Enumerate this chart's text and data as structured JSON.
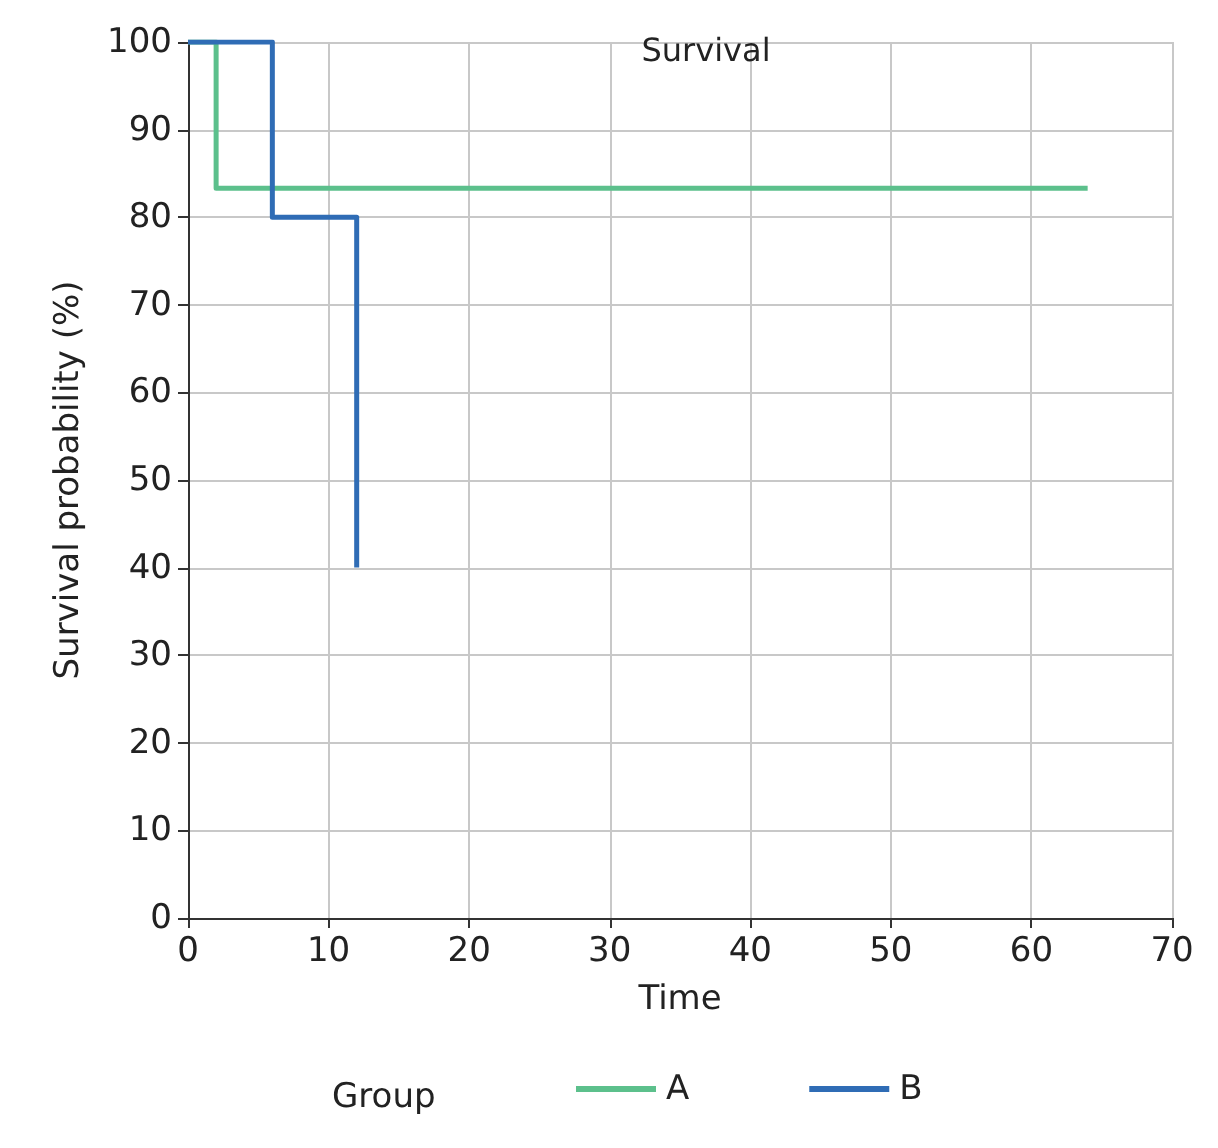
{
  "chart_data": {
    "type": "step",
    "title": "Survival",
    "xlabel": "Time",
    "ylabel": "Survival probability (%)",
    "legend_title": "Group",
    "series": [
      {
        "name": "A",
        "color": "#5cc08c",
        "x": [
          0,
          2,
          64
        ],
        "values": [
          100,
          83.3,
          83.3
        ]
      },
      {
        "name": "B",
        "color": "#2f6cb5",
        "x": [
          0,
          6,
          12
        ],
        "values": [
          100,
          80,
          40
        ]
      }
    ],
    "xlim": [
      0,
      70
    ],
    "xticks": [
      0,
      10,
      20,
      30,
      40,
      50,
      60,
      70
    ],
    "ylim": [
      0,
      100
    ],
    "yticks": [
      0,
      10,
      20,
      30,
      40,
      50,
      60,
      70,
      80,
      90,
      100
    ],
    "grid": true,
    "legend": "bottom",
    "marker": "none",
    "line_style": "solid"
  }
}
